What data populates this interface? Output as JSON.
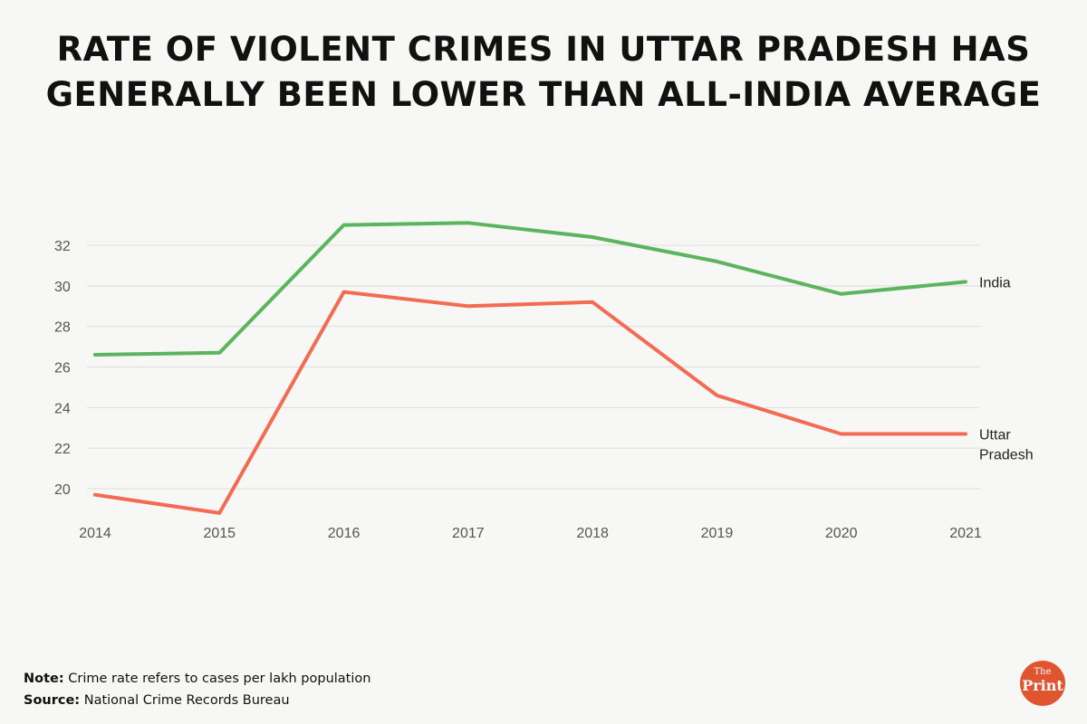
{
  "title_lines": [
    "RATE OF VIOLENT CRIMES IN UTTAR PRADESH HAS",
    "GENERALLY BEEN LOWER THAN ALL-INDIA AVERAGE"
  ],
  "footer": {
    "note_label": "Note:",
    "note_text": " Crime rate refers to cases per lakh population",
    "source_label": "Source:",
    "source_text": " National Crime Records Bureau"
  },
  "logo": {
    "the": "The",
    "print": "Print"
  },
  "chart_data": {
    "type": "line",
    "x": [
      "2014",
      "2015",
      "2016",
      "2017",
      "2018",
      "2019",
      "2020",
      "2021"
    ],
    "yticks": [
      20,
      22,
      24,
      26,
      28,
      30,
      32
    ],
    "ylim": [
      19,
      33.5
    ],
    "grid": true,
    "series": [
      {
        "name": "India",
        "label_lines": [
          "India"
        ],
        "color": "#5ab55e",
        "values": [
          26.6,
          26.7,
          33.0,
          33.1,
          32.4,
          31.2,
          29.6,
          30.2
        ]
      },
      {
        "name": "Uttar Pradesh",
        "label_lines": [
          "Uttar",
          "Pradesh"
        ],
        "color": "#f26b52",
        "values": [
          19.7,
          18.8,
          29.7,
          29.0,
          29.2,
          24.6,
          22.7,
          22.7
        ]
      }
    ]
  }
}
